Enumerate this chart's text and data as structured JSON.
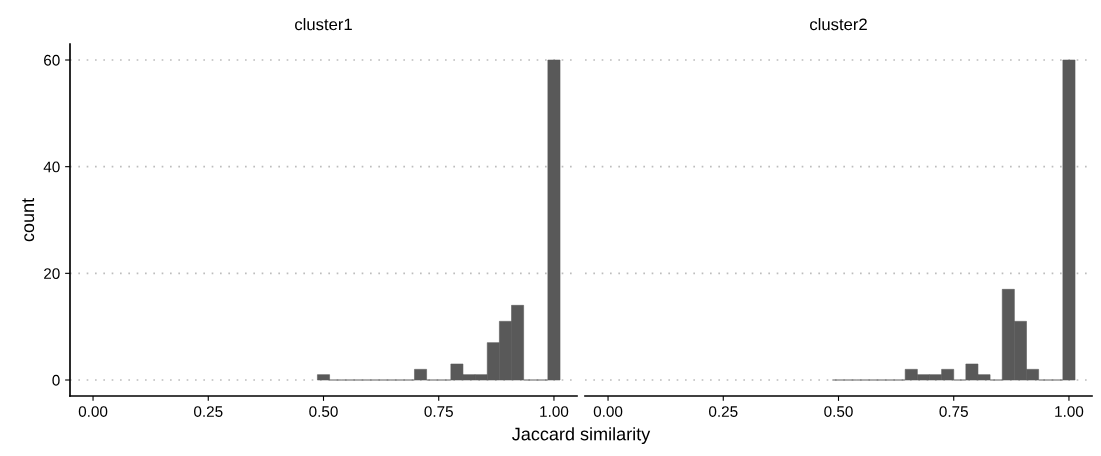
{
  "chart_data": [
    {
      "type": "histogram",
      "title": "cluster1",
      "xlabel": "Jaccard similarity",
      "ylabel": "count",
      "color": "#595959",
      "bins": [
        0.4868,
        0.5132,
        0.5395,
        0.5658,
        0.5921,
        0.6184,
        0.6447,
        0.6711,
        0.6974,
        0.7237,
        0.75,
        0.7763,
        0.8026,
        0.8289,
        0.8553,
        0.8816,
        0.9079,
        0.9342,
        0.9605,
        0.9868,
        1.0132
      ],
      "values": [
        1,
        0,
        0,
        0,
        0,
        0,
        0,
        0,
        2,
        0,
        0,
        3,
        1,
        1,
        7,
        11,
        14,
        0,
        0,
        60
      ],
      "xlim": [
        -0.05,
        1.05
      ],
      "xticks": [
        {
          "value": 0,
          "label": "0.00"
        },
        {
          "value": 0.25,
          "label": "0.25"
        },
        {
          "value": 0.5,
          "label": "0.50"
        },
        {
          "value": 0.75,
          "label": "0.75"
        },
        {
          "value": 1,
          "label": "1.00"
        }
      ],
      "ylim": [
        -3,
        63
      ],
      "yticks": [
        0,
        20,
        40,
        60
      ],
      "grid": "y"
    },
    {
      "type": "histogram",
      "title": "cluster2",
      "color": "#595959",
      "bins": [
        0.4868,
        0.5132,
        0.5395,
        0.5658,
        0.5921,
        0.6184,
        0.6447,
        0.6711,
        0.6974,
        0.7237,
        0.75,
        0.7763,
        0.8026,
        0.8289,
        0.8553,
        0.8816,
        0.9079,
        0.9342,
        0.9605,
        0.9868,
        1.0132
      ],
      "values": [
        0,
        0,
        0,
        0,
        0,
        0,
        2,
        1,
        1,
        2,
        0,
        3,
        1,
        0,
        17,
        11,
        2,
        0,
        0,
        60
      ],
      "xlim": [
        -0.05,
        1.05
      ],
      "xticks": [
        {
          "value": 0,
          "label": "0.00"
        },
        {
          "value": 0.25,
          "label": "0.25"
        },
        {
          "value": 0.5,
          "label": "0.50"
        },
        {
          "value": 0.75,
          "label": "0.75"
        },
        {
          "value": 1,
          "label": "1.00"
        }
      ],
      "yticks": [
        0,
        20,
        40,
        60
      ],
      "grid": "y",
      "tick_labels": "x"
    }
  ]
}
